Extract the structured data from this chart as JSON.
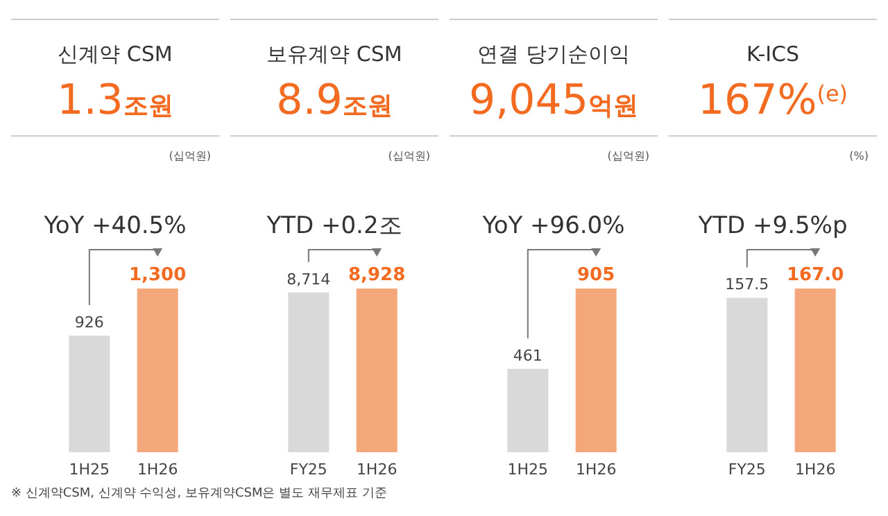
{
  "chart_data": [
    {
      "type": "bar",
      "title": "신계약 CSM",
      "subtitle": "1.3조원",
      "categories": [
        "1H25",
        "1H26"
      ],
      "values": [
        926,
        1300
      ],
      "colors": [
        "#d9d9d9",
        "#f4a77b"
      ],
      "value_labels": [
        "926",
        "1,300"
      ],
      "annotations": [
        "(십억원)",
        "YoY +40.5%",
        "※ 신계약CSM, 신계약 수익성, 보유계약CSM은 별도 재무제표 기준"
      ]
    },
    {
      "type": "bar",
      "title": "보유계약 CSM",
      "subtitle": "8.9조원",
      "categories": [
        "FY25",
        "1H26"
      ],
      "values": [
        8714,
        8928
      ],
      "colors": [
        "#d9d9d9",
        "#f4a77b"
      ],
      "value_labels": [
        "8,714",
        "8,928"
      ],
      "annotations": [
        "(십억원)",
        "YTD +0.2조"
      ]
    },
    {
      "type": "bar",
      "title": "연결 당기순이익",
      "subtitle": "9,045억원",
      "categories": [
        "1H25",
        "1H26"
      ],
      "values": [
        461,
        905
      ],
      "colors": [
        "#d9d9d9",
        "#f4a77b"
      ],
      "value_labels": [
        "461",
        "905"
      ],
      "annotations": [
        "(십억원)",
        "YoY +96.0%"
      ]
    },
    {
      "type": "bar",
      "title": "K-ICS",
      "subtitle": "167%$^{(e)}$",
      "categories": [
        "FY25",
        "1H26"
      ],
      "values": [
        157.5,
        167.0
      ],
      "colors": [
        "#d9d9d9",
        "#f4a77b"
      ],
      "value_labels": [
        "157.5",
        "167.0"
      ],
      "annotations": [
        "(%)",
        "YTD +9.5%p"
      ]
    }
  ]
}
